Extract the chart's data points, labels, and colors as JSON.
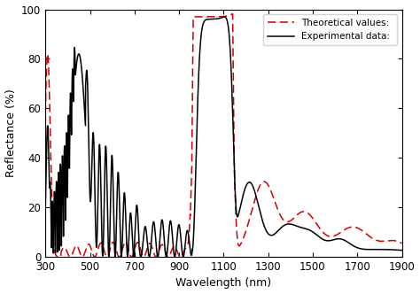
{
  "title": "",
  "xlabel": "Wavelength (nm)",
  "ylabel": "Reflectance (%)",
  "xlim": [
    300,
    1900
  ],
  "ylim": [
    0,
    100
  ],
  "xticks": [
    300,
    500,
    700,
    900,
    1100,
    1300,
    1500,
    1700,
    1900
  ],
  "yticks": [
    0,
    20,
    40,
    60,
    80,
    100
  ],
  "legend_labels": [
    "Theoretical values: ",
    "Experimental data: "
  ],
  "theoretical_color": "#cc0000",
  "experimental_color": "#000000",
  "background_color": "#ffffff",
  "figsize": [
    4.74,
    3.32
  ],
  "dpi": 100
}
